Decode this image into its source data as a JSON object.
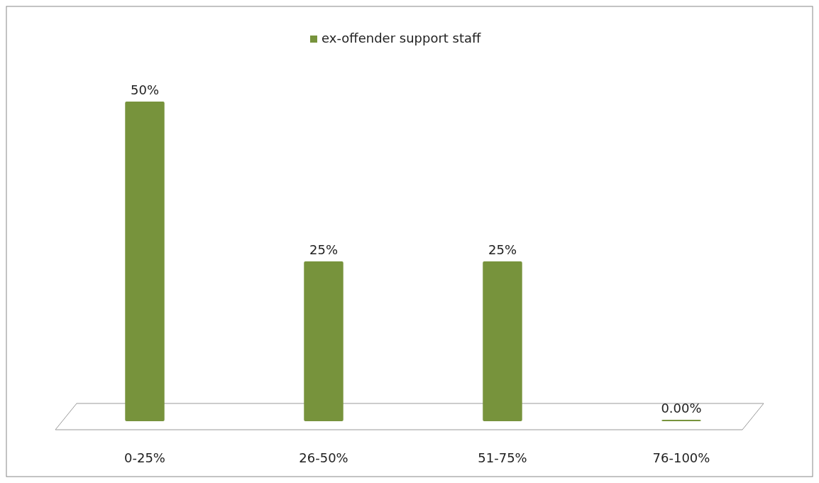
{
  "chart_data": {
    "type": "bar",
    "categories": [
      "0-25%",
      "26-50%",
      "51-75%",
      "76-100%"
    ],
    "series": [
      {
        "name": "ex-offender support staff",
        "color": "#77933c",
        "values": [
          50,
          25,
          25,
          0
        ],
        "value_labels": [
          "50%",
          "25%",
          "25%",
          "0.00%"
        ]
      }
    ],
    "legend": "top"
  }
}
